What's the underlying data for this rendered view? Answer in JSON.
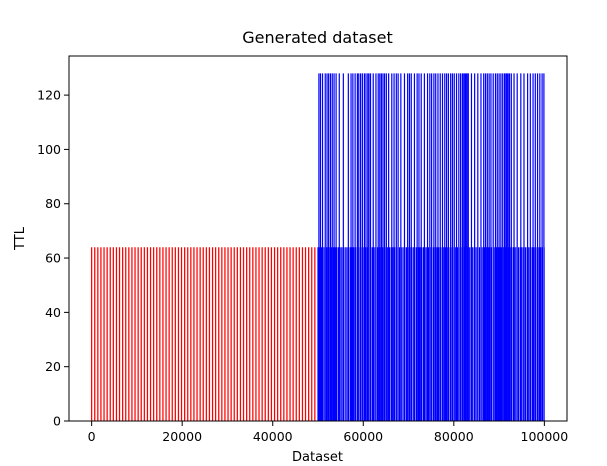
{
  "chart_data": {
    "type": "bar",
    "title": "Generated dataset",
    "xlabel": "Dataset",
    "ylabel": "TTL",
    "xlim": [
      -5000,
      105000
    ],
    "ylim": [
      0,
      134.4
    ],
    "x_ticks": [
      0,
      20000,
      40000,
      60000,
      80000,
      100000
    ],
    "x_tick_labels": [
      "0",
      "20000",
      "40000",
      "60000",
      "80000",
      "100000"
    ],
    "y_ticks": [
      0,
      20,
      40,
      60,
      80,
      100,
      120
    ],
    "y_tick_labels": [
      "0",
      "20",
      "40",
      "60",
      "80",
      "100",
      "120"
    ],
    "grid": false,
    "series": [
      {
        "color": "#ff0000",
        "x_range": [
          0,
          50000
        ],
        "value": 64
      },
      {
        "color": "#0000ff",
        "x_range": [
          50000,
          100000
        ],
        "base_value": 64,
        "peak_value": 128,
        "peak_x": [
          50200,
          50550,
          51000,
          51600,
          52000,
          52350,
          52750,
          53150,
          53550,
          54000,
          54700,
          55600,
          56700,
          57300,
          57700,
          58200,
          58700,
          59000,
          59400,
          59800,
          60250,
          60600,
          61000,
          61250,
          61600,
          62200,
          62800,
          63300,
          63650,
          64000,
          64350,
          64700,
          65100,
          65600,
          66300,
          66800,
          67300,
          67700,
          68300,
          69100,
          69800,
          70200,
          70600,
          71300,
          71900,
          72300,
          72800,
          73500,
          74200,
          74700,
          75100,
          75600,
          76000,
          76500,
          77000,
          77500,
          78000,
          78400,
          78800,
          79300,
          79700,
          80100,
          80600,
          81100,
          81500,
          81900,
          82200,
          82450,
          82700,
          82950,
          83200,
          83900,
          84600,
          85300,
          86000,
          86600,
          87000,
          87400,
          87800,
          88200,
          88700,
          89200,
          89600,
          90000,
          90400,
          90800,
          91200,
          91500,
          91750,
          92000,
          92300,
          92700,
          93300,
          94000,
          94800,
          95500,
          96300,
          96900,
          97500,
          98000,
          98500,
          99000,
          99500,
          99900
        ]
      }
    ]
  }
}
